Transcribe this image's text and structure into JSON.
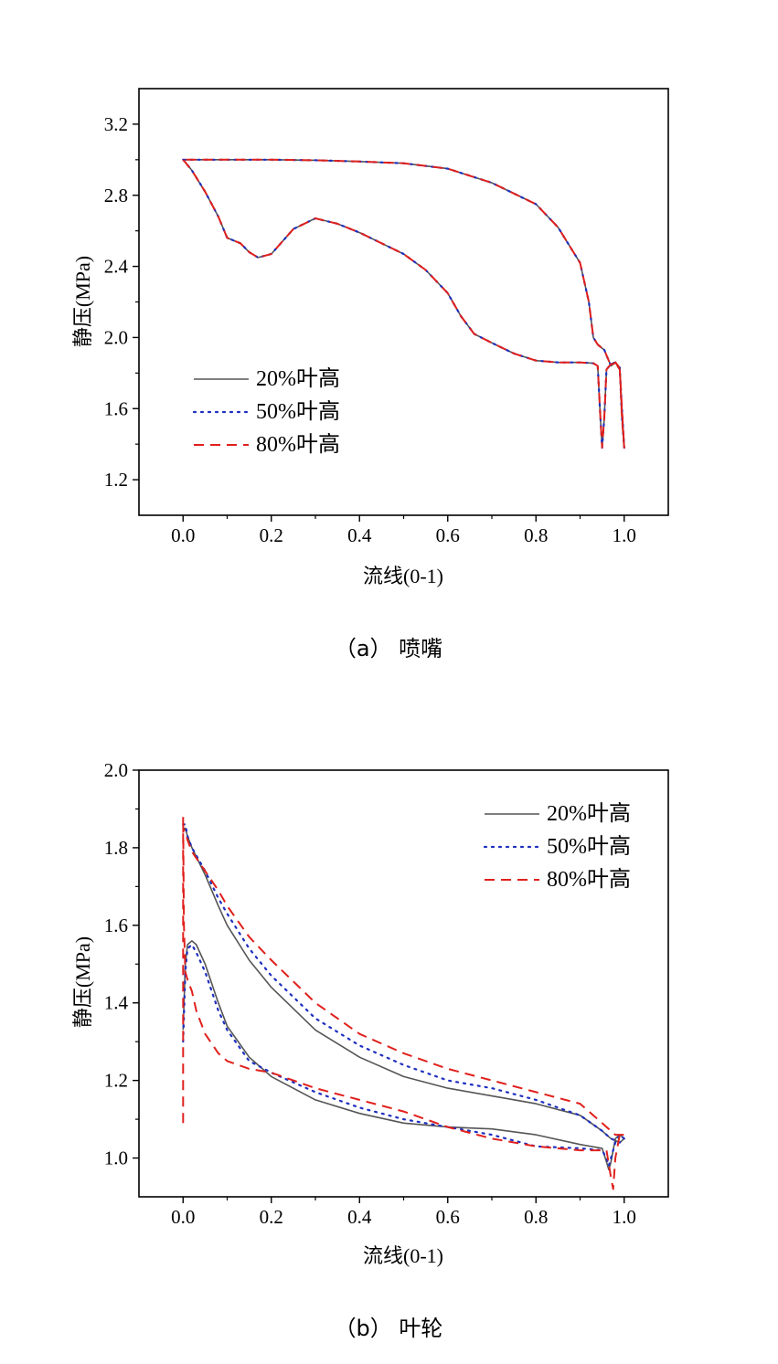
{
  "series_styles": [
    {
      "name": "20%叶高",
      "color": "#555555",
      "dash": "solid"
    },
    {
      "name": "50%叶高",
      "color": "#1f2fbf",
      "dash": "dotted"
    },
    {
      "name": "80%叶高",
      "color": "#e0201c",
      "dash": "dashed"
    }
  ],
  "chart_data": [
    {
      "type": "line",
      "caption": "（a）  喷嘴",
      "xlabel": "流线(0-1)",
      "ylabel": "静压(MPa)",
      "xlim": [
        -0.1,
        1.1
      ],
      "ylim": [
        1.0,
        3.4
      ],
      "xticks": [
        0.0,
        0.2,
        0.4,
        0.6,
        0.8,
        1.0
      ],
      "yticks": [
        1.2,
        1.6,
        2.0,
        2.4,
        2.8,
        3.2
      ],
      "xtick_labels": [
        "0.0",
        "0.2",
        "0.4",
        "0.6",
        "0.8",
        "1.0"
      ],
      "ytick_labels": [
        "1.2",
        "1.6",
        "2.0",
        "2.4",
        "2.8",
        "3.2"
      ],
      "legend_position": "bottom-left",
      "legend": [
        "20%叶高",
        "50%叶高",
        "80%叶高"
      ],
      "series": [
        {
          "name": "20%叶高",
          "x": [
            0,
            0.02,
            0.05,
            0.08,
            0.1,
            0.13,
            0.15,
            0.17,
            0.2,
            0.25,
            0.3,
            0.35,
            0.4,
            0.45,
            0.5,
            0.55,
            0.6,
            0.63,
            0.66,
            0.7,
            0.75,
            0.8,
            0.85,
            0.9,
            0.93,
            0.94,
            0.945,
            0.95,
            0.955,
            0.96,
            0.97,
            0.98,
            0.99,
            0.995,
            1.0,
            0.995,
            0.99,
            0.98,
            0.97,
            0.96,
            0.955,
            0.95,
            0.945,
            0.94,
            0.93,
            0.92,
            0.9,
            0.85,
            0.8,
            0.7,
            0.6,
            0.5,
            0.4,
            0.3,
            0.2,
            0.1,
            0.05,
            0
          ],
          "y": [
            3.0,
            2.94,
            2.82,
            2.68,
            2.56,
            2.53,
            2.48,
            2.45,
            2.47,
            2.61,
            2.67,
            2.64,
            2.59,
            2.53,
            2.47,
            2.38,
            2.25,
            2.12,
            2.02,
            1.97,
            1.91,
            1.87,
            1.86,
            1.86,
            1.855,
            1.84,
            1.6,
            1.38,
            1.55,
            1.82,
            1.85,
            1.86,
            1.82,
            1.6,
            1.38,
            1.55,
            1.83,
            1.86,
            1.84,
            1.9,
            1.93,
            1.94,
            1.95,
            1.96,
            2.0,
            2.2,
            2.42,
            2.62,
            2.75,
            2.87,
            2.95,
            2.98,
            2.99,
            2.997,
            3.0,
            3.0,
            3.0,
            3.0
          ]
        },
        {
          "name": "50%叶高",
          "x": [
            0,
            0.02,
            0.05,
            0.08,
            0.1,
            0.13,
            0.15,
            0.17,
            0.2,
            0.25,
            0.3,
            0.35,
            0.4,
            0.45,
            0.5,
            0.55,
            0.6,
            0.63,
            0.66,
            0.7,
            0.75,
            0.8,
            0.85,
            0.9,
            0.93,
            0.94,
            0.945,
            0.95,
            0.955,
            0.96,
            0.97,
            0.98,
            0.99,
            0.995,
            1.0,
            0.995,
            0.99,
            0.98,
            0.97,
            0.96,
            0.955,
            0.95,
            0.945,
            0.94,
            0.93,
            0.92,
            0.9,
            0.85,
            0.8,
            0.7,
            0.6,
            0.5,
            0.4,
            0.3,
            0.2,
            0.1,
            0.05,
            0
          ],
          "y": [
            3.0,
            2.94,
            2.82,
            2.68,
            2.56,
            2.53,
            2.48,
            2.45,
            2.47,
            2.61,
            2.67,
            2.64,
            2.59,
            2.53,
            2.47,
            2.38,
            2.25,
            2.12,
            2.02,
            1.97,
            1.91,
            1.87,
            1.86,
            1.86,
            1.855,
            1.84,
            1.6,
            1.38,
            1.55,
            1.82,
            1.85,
            1.86,
            1.82,
            1.6,
            1.38,
            1.55,
            1.83,
            1.86,
            1.84,
            1.9,
            1.93,
            1.94,
            1.95,
            1.96,
            2.0,
            2.2,
            2.42,
            2.62,
            2.75,
            2.87,
            2.95,
            2.98,
            2.99,
            2.997,
            3.0,
            3.0,
            3.0,
            3.0
          ]
        },
        {
          "name": "80%叶高",
          "x": [
            0,
            0.02,
            0.05,
            0.08,
            0.1,
            0.13,
            0.15,
            0.17,
            0.2,
            0.25,
            0.3,
            0.35,
            0.4,
            0.45,
            0.5,
            0.55,
            0.6,
            0.63,
            0.66,
            0.7,
            0.75,
            0.8,
            0.85,
            0.9,
            0.93,
            0.94,
            0.945,
            0.95,
            0.955,
            0.96,
            0.97,
            0.98,
            0.99,
            0.995,
            1.0,
            0.995,
            0.99,
            0.98,
            0.97,
            0.96,
            0.955,
            0.95,
            0.945,
            0.94,
            0.93,
            0.92,
            0.9,
            0.85,
            0.8,
            0.7,
            0.6,
            0.5,
            0.4,
            0.3,
            0.2,
            0.1,
            0.05,
            0
          ],
          "y": [
            3.0,
            2.94,
            2.82,
            2.68,
            2.56,
            2.53,
            2.48,
            2.45,
            2.47,
            2.61,
            2.67,
            2.64,
            2.59,
            2.53,
            2.47,
            2.38,
            2.25,
            2.12,
            2.02,
            1.97,
            1.91,
            1.87,
            1.86,
            1.86,
            1.855,
            1.84,
            1.6,
            1.38,
            1.55,
            1.82,
            1.85,
            1.86,
            1.82,
            1.6,
            1.38,
            1.55,
            1.83,
            1.86,
            1.84,
            1.9,
            1.93,
            1.94,
            1.95,
            1.96,
            2.0,
            2.2,
            2.42,
            2.62,
            2.75,
            2.87,
            2.95,
            2.98,
            2.99,
            2.997,
            3.0,
            3.0,
            3.0,
            3.0
          ]
        }
      ]
    },
    {
      "type": "line",
      "caption": "（b）  叶轮",
      "xlabel": "流线(0-1)",
      "ylabel": "静压(MPa)",
      "xlim": [
        -0.1,
        1.1
      ],
      "ylim": [
        0.9,
        2.0
      ],
      "xticks": [
        0.0,
        0.2,
        0.4,
        0.6,
        0.8,
        1.0
      ],
      "yticks": [
        1.0,
        1.2,
        1.4,
        1.6,
        1.8,
        2.0
      ],
      "xtick_labels": [
        "0.0",
        "0.2",
        "0.4",
        "0.6",
        "0.8",
        "1.0"
      ],
      "ytick_labels": [
        "1.0",
        "1.2",
        "1.4",
        "1.6",
        "1.8",
        "2.0"
      ],
      "legend_position": "top-right",
      "legend": [
        "20%叶高",
        "50%叶高",
        "80%叶高"
      ],
      "series": [
        {
          "name": "20%叶高",
          "x": [
            0,
            0.005,
            0.01,
            0.02,
            0.03,
            0.05,
            0.08,
            0.1,
            0.15,
            0.2,
            0.3,
            0.4,
            0.5,
            0.6,
            0.7,
            0.8,
            0.9,
            0.95,
            0.96,
            0.965,
            0.97,
            0.98,
            0.99,
            1.0,
            0.99,
            0.98,
            0.97,
            0.96,
            0.95,
            0.9,
            0.8,
            0.7,
            0.6,
            0.5,
            0.4,
            0.3,
            0.2,
            0.15,
            0.1,
            0.08,
            0.05,
            0.02,
            0.01,
            0.005,
            0
          ],
          "y": [
            1.33,
            1.5,
            1.55,
            1.56,
            1.55,
            1.5,
            1.4,
            1.34,
            1.26,
            1.21,
            1.15,
            1.115,
            1.09,
            1.08,
            1.075,
            1.06,
            1.035,
            1.025,
            0.99,
            0.97,
            0.99,
            1.05,
            1.06,
            1.05,
            1.04,
            1.045,
            1.05,
            1.06,
            1.07,
            1.11,
            1.14,
            1.16,
            1.18,
            1.21,
            1.26,
            1.33,
            1.44,
            1.51,
            1.6,
            1.65,
            1.73,
            1.8,
            1.83,
            1.85,
            1.85
          ]
        },
        {
          "name": "50%叶高",
          "x": [
            0,
            0.005,
            0.01,
            0.02,
            0.03,
            0.05,
            0.08,
            0.1,
            0.15,
            0.2,
            0.3,
            0.4,
            0.5,
            0.6,
            0.7,
            0.8,
            0.9,
            0.95,
            0.96,
            0.965,
            0.97,
            0.98,
            0.99,
            1.0,
            0.99,
            0.98,
            0.97,
            0.96,
            0.95,
            0.9,
            0.8,
            0.7,
            0.6,
            0.5,
            0.4,
            0.3,
            0.2,
            0.15,
            0.1,
            0.08,
            0.05,
            0.02,
            0.01,
            0.005,
            0
          ],
          "y": [
            1.3,
            1.48,
            1.54,
            1.55,
            1.53,
            1.48,
            1.38,
            1.33,
            1.25,
            1.22,
            1.17,
            1.13,
            1.1,
            1.08,
            1.06,
            1.03,
            1.025,
            1.02,
            1.0,
            0.98,
            1.0,
            1.04,
            1.06,
            1.05,
            1.04,
            1.045,
            1.05,
            1.06,
            1.07,
            1.11,
            1.15,
            1.18,
            1.2,
            1.24,
            1.29,
            1.36,
            1.47,
            1.54,
            1.63,
            1.67,
            1.74,
            1.8,
            1.83,
            1.86,
            1.86
          ]
        },
        {
          "name": "80%叶高",
          "x": [
            0,
            0.0,
            0.002,
            0.005,
            0.01,
            0.02,
            0.03,
            0.05,
            0.08,
            0.1,
            0.15,
            0.2,
            0.3,
            0.4,
            0.5,
            0.6,
            0.7,
            0.8,
            0.9,
            0.95,
            0.96,
            0.97,
            0.975,
            0.98,
            0.99,
            1.0,
            0.99,
            0.98,
            0.97,
            0.96,
            0.95,
            0.9,
            0.8,
            0.7,
            0.6,
            0.5,
            0.4,
            0.3,
            0.2,
            0.15,
            0.1,
            0.08,
            0.05,
            0.02,
            0.01,
            0.005,
            0
          ],
          "y": [
            1.09,
            1.88,
            1.6,
            1.48,
            1.46,
            1.43,
            1.38,
            1.32,
            1.27,
            1.25,
            1.23,
            1.22,
            1.18,
            1.15,
            1.12,
            1.08,
            1.05,
            1.03,
            1.02,
            1.02,
            1.02,
            0.95,
            0.92,
            1.0,
            1.06,
            1.06,
            1.06,
            1.06,
            1.07,
            1.08,
            1.09,
            1.14,
            1.17,
            1.2,
            1.23,
            1.27,
            1.32,
            1.4,
            1.51,
            1.57,
            1.65,
            1.69,
            1.74,
            1.79,
            1.82,
            1.84,
            1.85
          ]
        }
      ]
    }
  ]
}
